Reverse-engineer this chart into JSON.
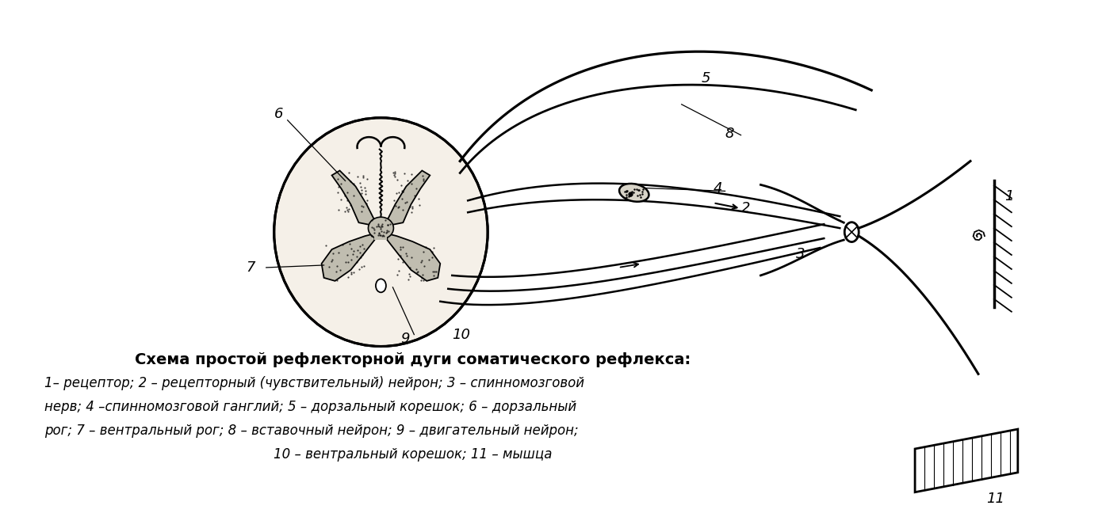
{
  "title": "Схема простой рефлекторной дуги соматического рефлекса:",
  "title_fontsize": 14,
  "caption_line1": "1– рецептор; 2 – рецепторный (чувствительный) нейрон; 3 – спинномозговой",
  "caption_line2": "нерв; 4 –спинномозговой ганглий; 5 – дорзальный корешок; 6 – дорзальный",
  "caption_line3": "рог; 7 – вентральный рог; 8 – вставочный нейрон; 9 – двигательный нейрон;",
  "caption_line4": "10 – вентральный корешок; 11 – мышца",
  "caption_fontsize": 12,
  "bg_color": "#ffffff",
  "ink_color": "#000000"
}
